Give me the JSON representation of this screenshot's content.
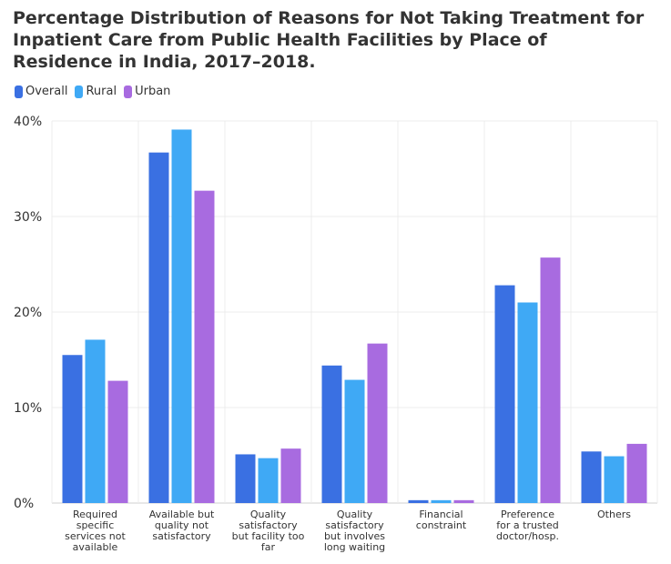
{
  "chart_data": {
    "type": "bar",
    "title": "Percentage Distribution of Reasons for Not Taking Treatment for Inpatient Care from Public Health Facilities by Place of Residence in India, 2017–2018.",
    "categories": [
      [
        "Required",
        "specific",
        "services not",
        "available"
      ],
      [
        "Available but",
        "quality not",
        "satisfactory"
      ],
      [
        "Quality",
        "satisfactory",
        "but facility too",
        "far"
      ],
      [
        "Quality",
        "satisfactory",
        "but involves",
        "long waiting"
      ],
      [
        "Financial",
        "constraint"
      ],
      [
        "Preference",
        "for a trusted",
        "doctor/hosp."
      ],
      [
        "Others"
      ]
    ],
    "series": [
      {
        "name": "Overall",
        "color": "#3a70e2",
        "values": [
          15.5,
          36.7,
          5.1,
          14.4,
          0.3,
          22.8,
          5.4
        ]
      },
      {
        "name": "Rural",
        "color": "#3fa9f5",
        "values": [
          17.1,
          39.1,
          4.7,
          12.9,
          0.3,
          21.0,
          4.9
        ]
      },
      {
        "name": "Urban",
        "color": "#a86be0",
        "values": [
          12.8,
          32.7,
          5.7,
          16.7,
          0.3,
          25.7,
          6.2
        ]
      }
    ],
    "yticks": [
      "0%",
      "10%",
      "20%",
      "30%",
      "40%"
    ],
    "ylim": [
      0,
      40
    ],
    "grid": true,
    "legend": "top-left"
  }
}
